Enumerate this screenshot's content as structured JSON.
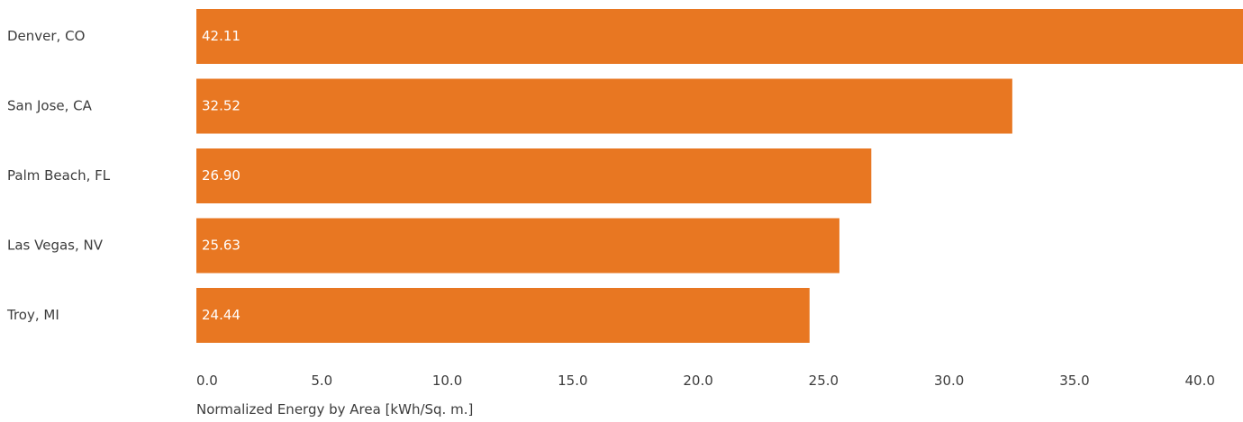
{
  "chart_data": {
    "type": "bar",
    "orientation": "horizontal",
    "categories": [
      "Denver, CO",
      "San Jose, CA",
      "Palm Beach, FL",
      "Las Vegas, NV",
      "Troy, MI"
    ],
    "values": [
      42.11,
      32.52,
      26.9,
      25.63,
      24.44
    ],
    "value_labels": [
      "42.11",
      "32.52",
      "26.90",
      "25.63",
      "24.44"
    ],
    "xlabel": "Normalized Energy by Area [kWh/Sq. m.]",
    "xticks": [
      "0.0",
      "5.0",
      "10.0",
      "15.0",
      "20.0",
      "25.0",
      "30.0",
      "35.0",
      "40.0"
    ],
    "xlim": [
      0,
      41.5
    ],
    "grid": false,
    "bar_color": "#e87722"
  }
}
